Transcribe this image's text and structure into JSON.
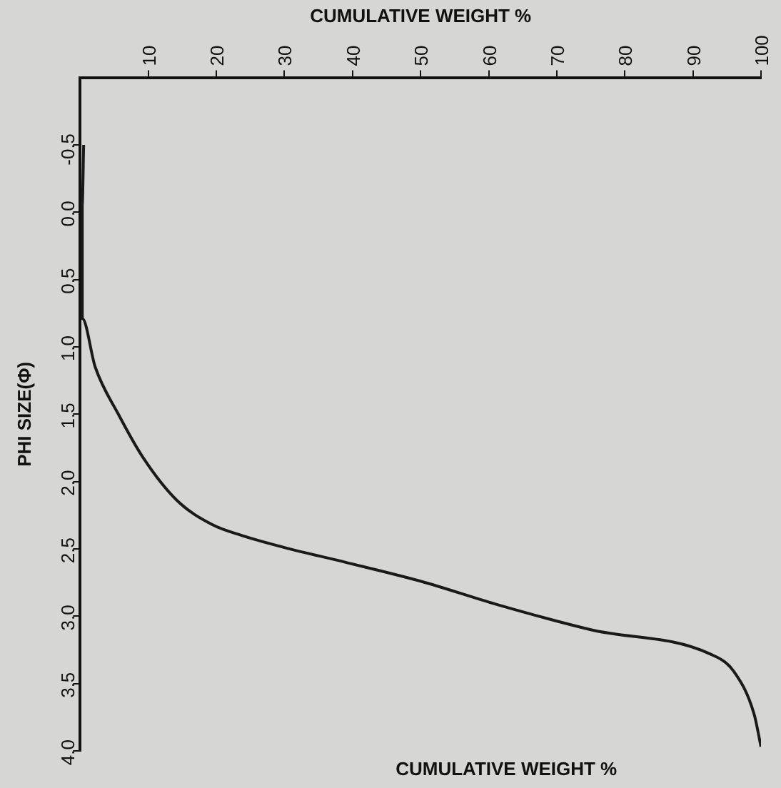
{
  "chart_data": {
    "type": "line",
    "xlabel": "CUMULATIVE WEIGHT %",
    "ylabel": "PHI SIZE(Φ)",
    "x": [
      0.5,
      0.3,
      0.3,
      2.2,
      5.6,
      9.2,
      14.2,
      19.4,
      23.7,
      30,
      39,
      50,
      61,
      75,
      92.5,
      96,
      99,
      100
    ],
    "series": [
      {
        "color": "#1a1a1a",
        "values": [
          -0.5,
          -0.06,
          0.79,
          1.15,
          1.5,
          1.82,
          2.14,
          2.32,
          2.4,
          2.49,
          2.6,
          2.74,
          2.91,
          3.1,
          3.28,
          3.41,
          3.73,
          3.97
        ]
      }
    ],
    "xlim": [
      0,
      100
    ],
    "xticks": [
      10,
      20,
      30,
      40,
      50,
      60,
      70,
      80,
      90,
      100
    ],
    "ylim": [
      4.0,
      -1.0
    ],
    "yticks": [
      -0.5,
      {
        "value": 0,
        "label": "0.0"
      },
      0.5,
      {
        "value": 1,
        "label": "1.0"
      },
      1.5,
      {
        "value": 2,
        "label": "2.0"
      },
      2.5,
      {
        "value": 3,
        "label": "3.0"
      },
      3.5,
      {
        "value": 4,
        "label": "4.0"
      }
    ],
    "grid": false,
    "legend": false,
    "marker": "none",
    "line_style": "solid",
    "annotations": [
      "CUMULATIVE WEIGHT %"
    ]
  }
}
